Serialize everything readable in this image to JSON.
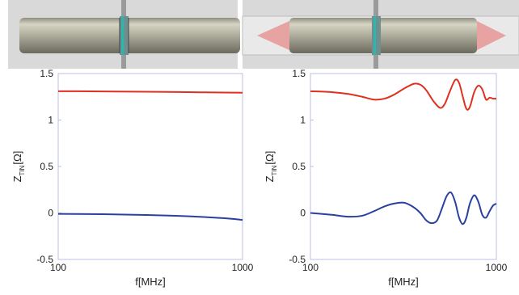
{
  "chart_data": [
    {
      "type": "line",
      "xlabel": "f[MHz]",
      "ylabel_main": "Z",
      "ylabel_sub": "TIN",
      "ylabel_unit": "[Ω]",
      "xscale": "log",
      "xlim": [
        100,
        1000
      ],
      "ylim": [
        -0.5,
        1.5
      ],
      "xticks": [
        "100",
        "1000"
      ],
      "yticks": [
        "-0.5",
        "0",
        "0.5",
        "1",
        "1.5"
      ],
      "grid": false,
      "series": [
        {
          "color": "#e03020",
          "x": [
            100,
            150,
            200,
            300,
            400,
            500,
            600,
            700,
            800,
            900,
            1000
          ],
          "y": [
            1.31,
            1.309,
            1.307,
            1.304,
            1.302,
            1.3,
            1.298,
            1.297,
            1.296,
            1.295,
            1.294
          ]
        },
        {
          "color": "#2a40a0",
          "x": [
            100,
            150,
            200,
            300,
            400,
            500,
            600,
            700,
            800,
            900,
            1000
          ],
          "y": [
            -0.01,
            -0.012,
            -0.015,
            -0.022,
            -0.028,
            -0.035,
            -0.042,
            -0.05,
            -0.057,
            -0.065,
            -0.075
          ]
        }
      ]
    },
    {
      "type": "line",
      "xlabel": "f[MHz]",
      "ylabel_main": "Z",
      "ylabel_sub": "TIN",
      "ylabel_unit": "[Ω]",
      "xscale": "log",
      "xlim": [
        100,
        1000
      ],
      "ylim": [
        -0.5,
        1.5
      ],
      "xticks": [
        "100",
        "1000"
      ],
      "yticks": [
        "-0.5",
        "0",
        "0.5",
        "1",
        "1.5"
      ],
      "grid": false,
      "series": [
        {
          "color": "#e03020",
          "x": [
            100,
            130,
            160,
            190,
            220,
            250,
            280,
            320,
            360,
            390,
            420,
            460,
            500,
            530,
            560,
            600,
            630,
            660,
            690,
            720,
            760,
            800,
            840,
            880,
            920,
            960,
            1000
          ],
          "y": [
            1.31,
            1.3,
            1.28,
            1.25,
            1.22,
            1.23,
            1.27,
            1.34,
            1.39,
            1.38,
            1.32,
            1.2,
            1.13,
            1.18,
            1.3,
            1.43,
            1.4,
            1.25,
            1.12,
            1.14,
            1.3,
            1.37,
            1.33,
            1.22,
            1.24,
            1.23,
            1.23
          ]
        },
        {
          "color": "#2a40a0",
          "x": [
            100,
            130,
            160,
            190,
            220,
            250,
            280,
            320,
            360,
            390,
            420,
            450,
            480,
            510,
            540,
            570,
            600,
            630,
            660,
            690,
            720,
            760,
            800,
            840,
            880,
            920,
            960,
            1000
          ],
          "y": [
            0.0,
            -0.02,
            -0.04,
            -0.03,
            0.02,
            0.07,
            0.1,
            0.11,
            0.06,
            0.0,
            -0.08,
            -0.11,
            -0.08,
            0.05,
            0.18,
            0.22,
            0.12,
            -0.05,
            -0.12,
            -0.05,
            0.1,
            0.19,
            0.12,
            -0.02,
            -0.05,
            0.02,
            0.08,
            0.1
          ]
        }
      ]
    }
  ]
}
